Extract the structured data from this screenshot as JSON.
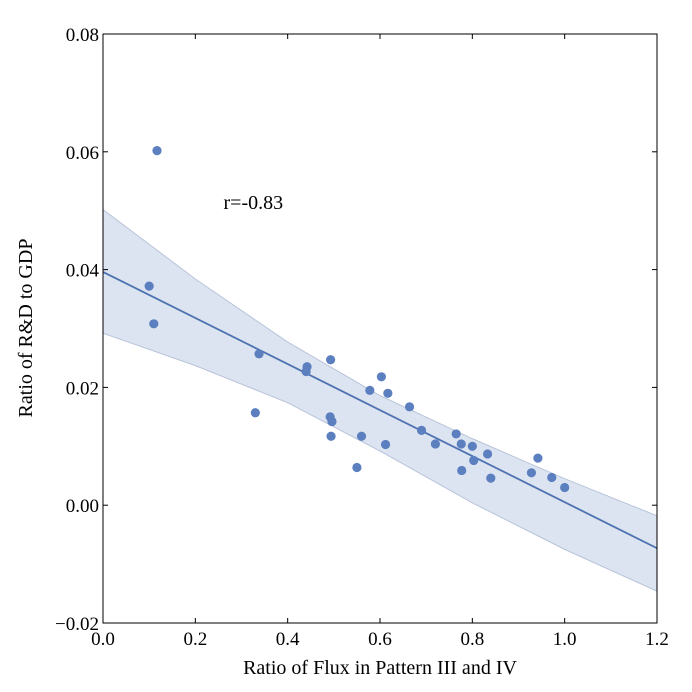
{
  "chart_data": {
    "type": "scatter",
    "xlabel": "Ratio of Flux in Pattern III and IV",
    "ylabel": "Ratio of R&D to GDP",
    "xlim": [
      0.0,
      1.2
    ],
    "ylim": [
      -0.02,
      0.08
    ],
    "x_ticks": [
      0.0,
      0.2,
      0.4,
      0.6,
      0.8,
      1.0,
      1.2
    ],
    "x_tick_labels": [
      "0.0",
      "0.2",
      "0.4",
      "0.6",
      "0.8",
      "1.0",
      "1.2"
    ],
    "y_ticks": [
      -0.02,
      0.0,
      0.02,
      0.04,
      0.06,
      0.08
    ],
    "y_tick_labels": [
      "−0.02",
      "0.00",
      "0.02",
      "0.04",
      "0.06",
      "0.08"
    ],
    "grid": false,
    "points": [
      {
        "x": 0.117,
        "y": 0.0602
      },
      {
        "x": 0.1,
        "y": 0.0372
      },
      {
        "x": 0.11,
        "y": 0.0308
      },
      {
        "x": 0.338,
        "y": 0.0257
      },
      {
        "x": 0.33,
        "y": 0.0157
      },
      {
        "x": 0.442,
        "y": 0.0235
      },
      {
        "x": 0.44,
        "y": 0.0227
      },
      {
        "x": 0.493,
        "y": 0.0247
      },
      {
        "x": 0.492,
        "y": 0.015
      },
      {
        "x": 0.496,
        "y": 0.0142
      },
      {
        "x": 0.494,
        "y": 0.0117
      },
      {
        "x": 0.55,
        "y": 0.0064
      },
      {
        "x": 0.56,
        "y": 0.0117
      },
      {
        "x": 0.578,
        "y": 0.0195
      },
      {
        "x": 0.603,
        "y": 0.0218
      },
      {
        "x": 0.617,
        "y": 0.019
      },
      {
        "x": 0.612,
        "y": 0.0103
      },
      {
        "x": 0.664,
        "y": 0.0167
      },
      {
        "x": 0.69,
        "y": 0.0127
      },
      {
        "x": 0.72,
        "y": 0.0104
      },
      {
        "x": 0.765,
        "y": 0.0121
      },
      {
        "x": 0.776,
        "y": 0.0104
      },
      {
        "x": 0.777,
        "y": 0.0059
      },
      {
        "x": 0.8,
        "y": 0.01
      },
      {
        "x": 0.803,
        "y": 0.0076
      },
      {
        "x": 0.833,
        "y": 0.0087
      },
      {
        "x": 0.84,
        "y": 0.0046
      },
      {
        "x": 0.928,
        "y": 0.0055
      },
      {
        "x": 0.942,
        "y": 0.008
      },
      {
        "x": 0.972,
        "y": 0.0047
      },
      {
        "x": 1.0,
        "y": 0.003
      }
    ],
    "regression_line": {
      "x": [
        0.0,
        1.2
      ],
      "y": [
        0.0396,
        -0.0073
      ]
    },
    "confidence_band": {
      "x": [
        0.0,
        0.2,
        0.4,
        0.6,
        0.8,
        1.0,
        1.2
      ],
      "upper": [
        0.0502,
        0.0384,
        0.0277,
        0.0186,
        0.0113,
        0.0045,
        -0.0018
      ],
      "lower": [
        0.0292,
        0.0237,
        0.0174,
        0.0092,
        0.0004,
        -0.0075,
        -0.0146
      ]
    },
    "annotation": {
      "text": "r=-0.83",
      "x": 0.3,
      "y": 0.0503
    },
    "colors": {
      "points": "#5b7fbf",
      "line": "#4c72b0",
      "band_fill": "#dde4f1",
      "band_edge": "#b8c3d9",
      "axes": "#000000"
    }
  }
}
